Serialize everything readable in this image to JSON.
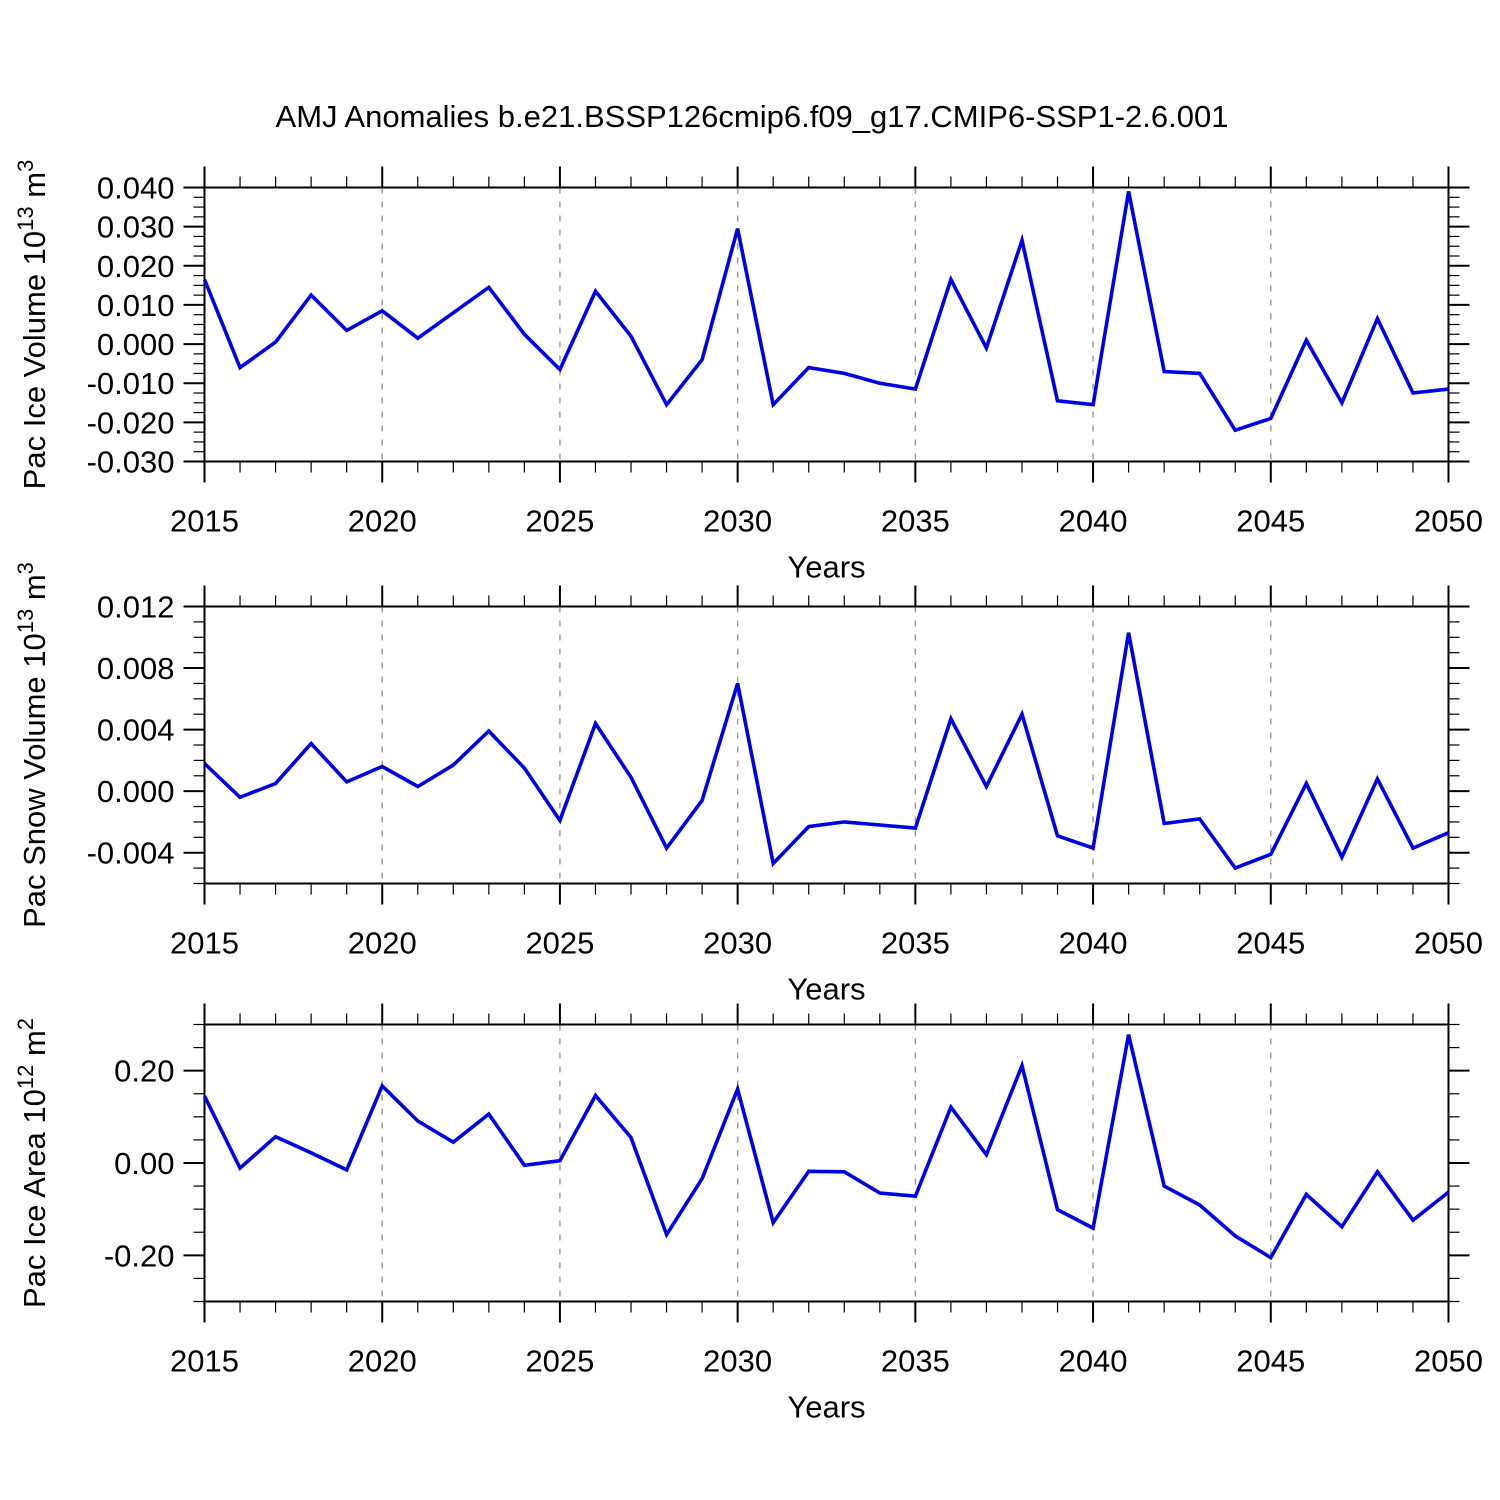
{
  "title": "AMJ Anomalies b.e21.BSSP126cmip6.f09_g17.CMIP6-SSP1-2.6.001",
  "line_color": "#0000e6",
  "grid_color": "#979797",
  "axis_color": "#000000",
  "chart_data": [
    {
      "type": "line",
      "ylabel": "Pac Ice Volume 10^13 m^3",
      "ylabel_parts": {
        "main": "Pac Ice Volume 10",
        "sup1": "13",
        "mid": " m",
        "sup2": "3"
      },
      "xlabel": "Years",
      "x": [
        2015,
        2016,
        2017,
        2018,
        2019,
        2020,
        2021,
        2022,
        2023,
        2024,
        2025,
        2026,
        2027,
        2028,
        2029,
        2030,
        2031,
        2032,
        2033,
        2034,
        2035,
        2036,
        2037,
        2038,
        2039,
        2040,
        2041,
        2042,
        2043,
        2044,
        2045,
        2046,
        2047,
        2048,
        2049,
        2050
      ],
      "values": [
        0.0165,
        -0.006,
        0.0005,
        0.0125,
        0.0035,
        0.0085,
        0.0015,
        0.008,
        0.0145,
        0.0025,
        -0.0065,
        0.0135,
        0.002,
        -0.0155,
        -0.004,
        0.0295,
        -0.0155,
        -0.006,
        -0.0075,
        -0.01,
        -0.0115,
        0.0165,
        -0.001,
        0.0265,
        -0.0145,
        -0.0155,
        0.039,
        -0.007,
        -0.0075,
        -0.022,
        -0.019,
        0.001,
        -0.015,
        0.0065,
        -0.0125,
        -0.0115
      ],
      "ylim": [
        -0.03,
        0.04
      ],
      "yticks": [
        {
          "v": 0.04,
          "label": "0.040"
        },
        {
          "v": 0.03,
          "label": "0.030"
        },
        {
          "v": 0.02,
          "label": "0.020"
        },
        {
          "v": 0.01,
          "label": "0.010"
        },
        {
          "v": 0.0,
          "label": "0.000"
        },
        {
          "v": -0.01,
          "label": "-0.010"
        },
        {
          "v": -0.02,
          "label": "-0.020"
        },
        {
          "v": -0.03,
          "label": "-0.030"
        }
      ],
      "y_minor_step": 0.0025,
      "xlim": [
        2015,
        2050
      ],
      "xticks": [
        {
          "v": 2015,
          "label": "2015"
        },
        {
          "v": 2020,
          "label": "2020"
        },
        {
          "v": 2025,
          "label": "2025"
        },
        {
          "v": 2030,
          "label": "2030"
        },
        {
          "v": 2035,
          "label": "2035"
        },
        {
          "v": 2040,
          "label": "2040"
        },
        {
          "v": 2045,
          "label": "2045"
        },
        {
          "v": 2050,
          "label": "2050"
        }
      ],
      "x_minor_step": 1,
      "grid_x": [
        2020,
        2025,
        2030,
        2035,
        2040,
        2045
      ],
      "grid_on": "vertical-dashed",
      "legend": "none"
    },
    {
      "type": "line",
      "ylabel": "Pac Snow Volume 10^13 m^3",
      "ylabel_parts": {
        "main": "Pac Snow Volume 10",
        "sup1": "13",
        "mid": " m",
        "sup2": "3"
      },
      "xlabel": "Years",
      "x": [
        2015,
        2016,
        2017,
        2018,
        2019,
        2020,
        2021,
        2022,
        2023,
        2024,
        2025,
        2026,
        2027,
        2028,
        2029,
        2030,
        2031,
        2032,
        2033,
        2034,
        2035,
        2036,
        2037,
        2038,
        2039,
        2040,
        2041,
        2042,
        2043,
        2044,
        2045,
        2046,
        2047,
        2048,
        2049,
        2050
      ],
      "values": [
        0.0018,
        -0.0004,
        0.0005,
        0.0031,
        0.0006,
        0.0016,
        0.0003,
        0.0017,
        0.0039,
        0.0015,
        -0.0019,
        0.0044,
        0.0009,
        -0.0037,
        -0.0006,
        0.007,
        -0.0047,
        -0.0023,
        -0.002,
        -0.0022,
        -0.0024,
        0.0047,
        0.0003,
        0.005,
        -0.0029,
        -0.0037,
        0.0103,
        -0.0021,
        -0.0018,
        -0.005,
        -0.0041,
        0.0005,
        -0.0043,
        0.0008,
        -0.0037,
        -0.0027
      ],
      "ylim": [
        -0.006,
        0.012
      ],
      "yticks": [
        {
          "v": 0.012,
          "label": "0.012"
        },
        {
          "v": 0.008,
          "label": "0.008"
        },
        {
          "v": 0.004,
          "label": "0.004"
        },
        {
          "v": 0.0,
          "label": "0.000"
        },
        {
          "v": -0.004,
          "label": "-0.004"
        }
      ],
      "y_minor_step": 0.001,
      "xlim": [
        2015,
        2050
      ],
      "xticks": [
        {
          "v": 2015,
          "label": "2015"
        },
        {
          "v": 2020,
          "label": "2020"
        },
        {
          "v": 2025,
          "label": "2025"
        },
        {
          "v": 2030,
          "label": "2030"
        },
        {
          "v": 2035,
          "label": "2035"
        },
        {
          "v": 2040,
          "label": "2040"
        },
        {
          "v": 2045,
          "label": "2045"
        },
        {
          "v": 2050,
          "label": "2050"
        }
      ],
      "x_minor_step": 1,
      "grid_x": [
        2020,
        2025,
        2030,
        2035,
        2040,
        2045
      ],
      "grid_on": "vertical-dashed",
      "legend": "none"
    },
    {
      "type": "line",
      "ylabel": "Pac Ice Area 10^12 m^2",
      "ylabel_parts": {
        "main": "Pac Ice Area 10",
        "sup1": "12",
        "mid": " m",
        "sup2": "2"
      },
      "xlabel": "Years",
      "x": [
        2015,
        2016,
        2017,
        2018,
        2019,
        2020,
        2021,
        2022,
        2023,
        2024,
        2025,
        2026,
        2027,
        2028,
        2029,
        2030,
        2031,
        2032,
        2033,
        2034,
        2035,
        2036,
        2037,
        2038,
        2039,
        2040,
        2041,
        2042,
        2043,
        2044,
        2045,
        2046,
        2047,
        2048,
        2049,
        2050
      ],
      "values": [
        0.145,
        -0.011,
        0.057,
        0.022,
        -0.015,
        0.167,
        0.091,
        0.045,
        0.106,
        -0.005,
        0.005,
        0.146,
        0.055,
        -0.155,
        -0.034,
        0.16,
        -0.129,
        -0.018,
        -0.019,
        -0.065,
        -0.072,
        0.121,
        0.018,
        0.211,
        -0.101,
        -0.141,
        0.278,
        -0.05,
        -0.091,
        -0.158,
        -0.205,
        -0.068,
        -0.138,
        -0.019,
        -0.124,
        -0.063
      ],
      "ylim": [
        -0.3,
        0.3
      ],
      "yticks": [
        {
          "v": 0.2,
          "label": "0.20"
        },
        {
          "v": 0.0,
          "label": "0.00"
        },
        {
          "v": -0.2,
          "label": "-0.20"
        }
      ],
      "y_minor_step": 0.05,
      "xlim": [
        2015,
        2050
      ],
      "xticks": [
        {
          "v": 2015,
          "label": "2015"
        },
        {
          "v": 2020,
          "label": "2020"
        },
        {
          "v": 2025,
          "label": "2025"
        },
        {
          "v": 2030,
          "label": "2030"
        },
        {
          "v": 2035,
          "label": "2035"
        },
        {
          "v": 2040,
          "label": "2040"
        },
        {
          "v": 2045,
          "label": "2045"
        },
        {
          "v": 2050,
          "label": "2050"
        }
      ],
      "x_minor_step": 1,
      "grid_x": [
        2020,
        2025,
        2030,
        2035,
        2040,
        2045
      ],
      "grid_on": "vertical-dashed",
      "legend": "none"
    }
  ]
}
